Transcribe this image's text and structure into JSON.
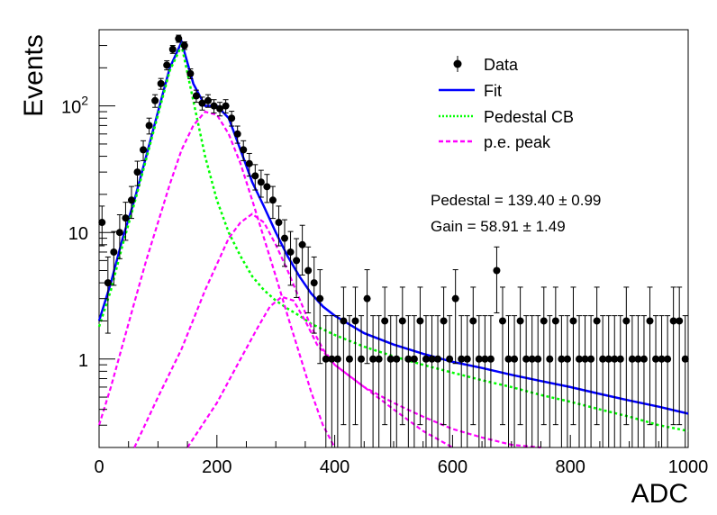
{
  "chart_data": {
    "type": "scatter",
    "xlabel": "ADC",
    "ylabel": "Events",
    "xlim": [
      0,
      1000
    ],
    "ylim": [
      0.2,
      400
    ],
    "yscale": "log",
    "grid": false,
    "legend_position": "top-right",
    "x_ticks": [
      "0",
      "200",
      "400",
      "600",
      "800",
      "1000"
    ],
    "y_ticks": [
      "1",
      "10",
      "10^2"
    ],
    "annotations": {
      "pedestal": "Pedestal = 139.40 ± 0.99",
      "gain": "Gain = 58.91 ± 1.49"
    },
    "legend": [
      {
        "label": "Data",
        "color": "#000000",
        "style": "marker"
      },
      {
        "label": "Fit",
        "color": "#0000ff",
        "style": "solid"
      },
      {
        "label": "Pedestal CB",
        "color": "#00ff00",
        "style": "dotted"
      },
      {
        "label": "p.e. peak",
        "color": "#ff00ff",
        "style": "dashed"
      }
    ],
    "series": [
      {
        "name": "Data",
        "color": "#000000",
        "x": [
          5,
          15,
          25,
          35,
          45,
          55,
          65,
          75,
          85,
          95,
          105,
          115,
          125,
          135,
          145,
          155,
          165,
          175,
          185,
          195,
          205,
          215,
          225,
          235,
          245,
          255,
          265,
          275,
          285,
          295,
          305,
          315,
          325,
          335,
          345,
          355,
          365,
          375,
          385,
          395,
          405,
          415,
          425,
          435,
          445,
          455,
          465,
          475,
          485,
          495,
          505,
          515,
          525,
          535,
          545,
          555,
          565,
          575,
          585,
          595,
          605,
          615,
          625,
          635,
          645,
          655,
          665,
          675,
          685,
          695,
          705,
          715,
          725,
          735,
          745,
          755,
          765,
          775,
          785,
          795,
          805,
          815,
          825,
          835,
          845,
          855,
          865,
          875,
          885,
          895,
          905,
          915,
          925,
          935,
          945,
          955,
          965,
          975,
          985,
          995
        ],
        "y": [
          12,
          4,
          7,
          10,
          13,
          18,
          30,
          45,
          70,
          110,
          150,
          210,
          280,
          340,
          300,
          180,
          120,
          105,
          110,
          100,
          95,
          100,
          80,
          60,
          45,
          35,
          28,
          25,
          23,
          18,
          12,
          9,
          7,
          6,
          8,
          5,
          4,
          3,
          1,
          1,
          1,
          2,
          1,
          2,
          1,
          3,
          1,
          1,
          2,
          1,
          1,
          2,
          1,
          1,
          2,
          1,
          1,
          1,
          2,
          1,
          3,
          1,
          1,
          2,
          1,
          1,
          1,
          5,
          2,
          1,
          1,
          2,
          1,
          1,
          1,
          2,
          1,
          2,
          1,
          1,
          2,
          1,
          1,
          1,
          2,
          1,
          1,
          1,
          1,
          2,
          1,
          1,
          1,
          2,
          1,
          1,
          1,
          2,
          2,
          1
        ]
      },
      {
        "name": "Fit",
        "color": "#0000ff",
        "x": [
          0,
          20,
          40,
          60,
          80,
          100,
          120,
          140,
          160,
          180,
          200,
          220,
          240,
          260,
          280,
          300,
          320,
          340,
          360,
          380,
          400,
          450,
          500,
          550,
          600,
          650,
          700,
          750,
          800,
          850,
          900,
          950,
          1000
        ],
        "y": [
          2,
          4,
          9,
          18,
          40,
          90,
          200,
          320,
          150,
          100,
          100,
          80,
          45,
          25,
          16,
          10,
          6.5,
          4.5,
          3.3,
          2.6,
          2.2,
          1.6,
          1.3,
          1.1,
          0.95,
          0.85,
          0.75,
          0.67,
          0.6,
          0.53,
          0.47,
          0.42,
          0.37
        ]
      },
      {
        "name": "Pedestal CB",
        "color": "#00ff00",
        "x": [
          0,
          20,
          40,
          60,
          80,
          100,
          120,
          140,
          160,
          180,
          200,
          220,
          240,
          260,
          280,
          300,
          320,
          340,
          360,
          400,
          450,
          500,
          550,
          600,
          650,
          700,
          750,
          800,
          850,
          900,
          950,
          1000
        ],
        "y": [
          1.8,
          3.5,
          8,
          17,
          38,
          85,
          190,
          300,
          110,
          40,
          18,
          10,
          6.5,
          4.5,
          3.5,
          2.9,
          2.5,
          2.2,
          1.9,
          1.55,
          1.25,
          1.05,
          0.9,
          0.78,
          0.68,
          0.6,
          0.52,
          0.46,
          0.4,
          0.35,
          0.3,
          0.27
        ]
      },
      {
        "name": "p.e. peak 1",
        "color": "#ff00ff",
        "x": [
          0,
          20,
          40,
          60,
          80,
          100,
          120,
          140,
          160,
          180,
          200,
          220,
          240,
          260,
          280,
          300,
          320,
          340,
          360,
          380,
          400
        ],
        "y": [
          0.3,
          0.6,
          1.3,
          2.8,
          6,
          12,
          24,
          45,
          70,
          90,
          85,
          60,
          35,
          18,
          9,
          4.5,
          2.2,
          1.1,
          0.55,
          0.3,
          0.2
        ]
      },
      {
        "name": "p.e. peak 2",
        "color": "#ff00ff",
        "x": [
          60,
          100,
          140,
          180,
          220,
          240,
          260,
          280,
          300,
          320,
          340,
          360,
          380,
          400,
          450,
          500,
          550,
          600
        ],
        "y": [
          0.2,
          0.5,
          1.2,
          3.5,
          9,
          12,
          14,
          12,
          8,
          5,
          3,
          1.8,
          1.2,
          0.9,
          0.6,
          0.4,
          0.27,
          0.2
        ]
      },
      {
        "name": "p.e. peak 3",
        "color": "#ff00ff",
        "x": [
          150,
          200,
          240,
          270,
          290,
          310,
          330,
          350,
          370,
          400,
          450,
          500,
          550,
          600,
          650,
          700,
          750
        ],
        "y": [
          0.2,
          0.45,
          1.0,
          1.8,
          2.6,
          3.1,
          2.9,
          2.0,
          1.3,
          0.9,
          0.6,
          0.45,
          0.35,
          0.28,
          0.24,
          0.21,
          0.2
        ]
      }
    ]
  }
}
